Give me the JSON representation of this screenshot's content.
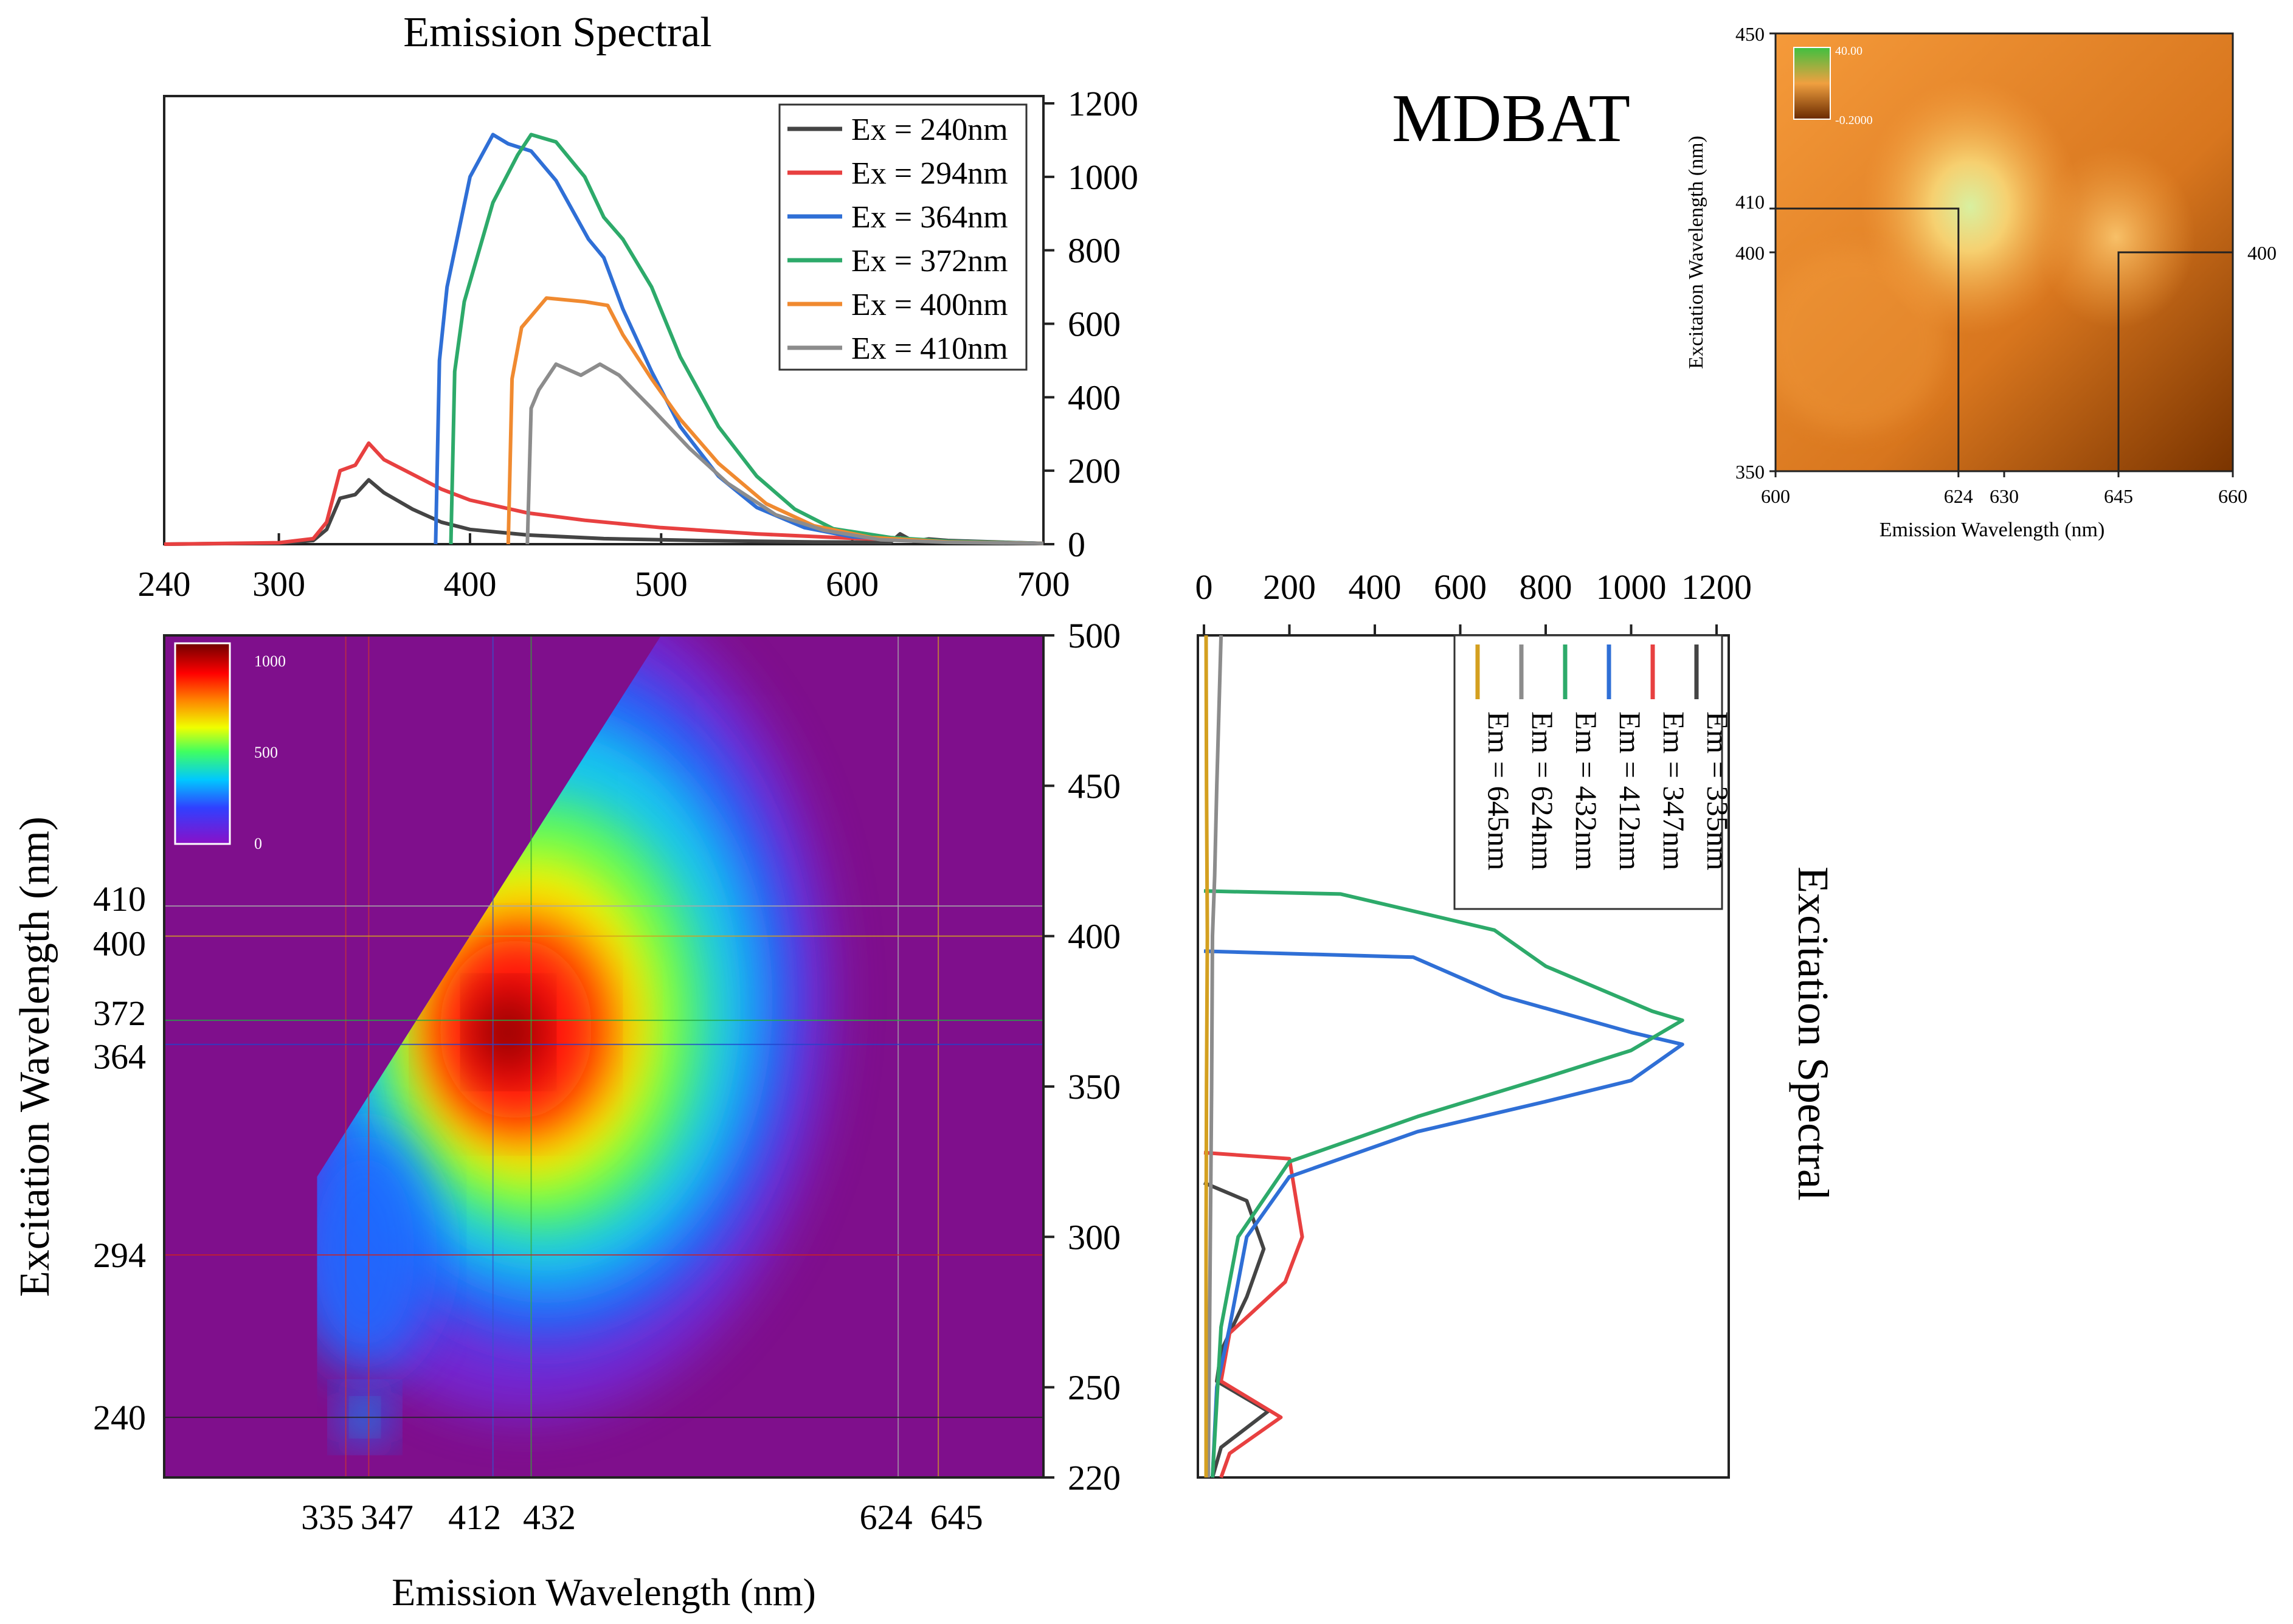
{
  "chart_data": [
    {
      "id": "emission",
      "type": "line",
      "title": "Emission Spectral",
      "xlabel": "",
      "ylabel": "",
      "xlim": [
        240,
        700
      ],
      "ylim": [
        0,
        1200
      ],
      "x_ticks": [
        240,
        300,
        400,
        500,
        600,
        700
      ],
      "y_ticks": [
        0,
        200,
        400,
        600,
        800,
        1000,
        1200
      ],
      "legend_position": "top-right",
      "series": [
        {
          "name": "Ex = 240nm",
          "color": "#444444",
          "points": [
            [
              240,
              0
            ],
            [
              300,
              3
            ],
            [
              318,
              10
            ],
            [
              325,
              40
            ],
            [
              332,
              125
            ],
            [
              340,
              135
            ],
            [
              347,
              175
            ],
            [
              355,
              140
            ],
            [
              370,
              95
            ],
            [
              385,
              60
            ],
            [
              400,
              40
            ],
            [
              430,
              25
            ],
            [
              470,
              15
            ],
            [
              520,
              10
            ],
            [
              580,
              6
            ],
            [
              620,
              5
            ],
            [
              625,
              28
            ],
            [
              632,
              8
            ],
            [
              640,
              14
            ],
            [
              650,
              10
            ],
            [
              700,
              2
            ]
          ]
        },
        {
          "name": "Ex = 294nm",
          "color": "#e84040",
          "points": [
            [
              240,
              0
            ],
            [
              300,
              4
            ],
            [
              318,
              15
            ],
            [
              325,
              60
            ],
            [
              332,
              200
            ],
            [
              340,
              215
            ],
            [
              347,
              275
            ],
            [
              355,
              230
            ],
            [
              370,
              190
            ],
            [
              385,
              150
            ],
            [
              400,
              120
            ],
            [
              430,
              85
            ],
            [
              460,
              65
            ],
            [
              500,
              45
            ],
            [
              550,
              28
            ],
            [
              600,
              16
            ],
            [
              625,
              12
            ],
            [
              645,
              8
            ],
            [
              700,
              2
            ]
          ]
        },
        {
          "name": "Ex = 364nm",
          "color": "#2f6fd6",
          "points": [
            [
              382,
              0
            ],
            [
              384,
              500
            ],
            [
              388,
              700
            ],
            [
              400,
              1000
            ],
            [
              412,
              1115
            ],
            [
              420,
              1090
            ],
            [
              432,
              1070
            ],
            [
              445,
              990
            ],
            [
              462,
              830
            ],
            [
              470,
              780
            ],
            [
              480,
              640
            ],
            [
              495,
              470
            ],
            [
              510,
              320
            ],
            [
              530,
              185
            ],
            [
              550,
              100
            ],
            [
              575,
              45
            ],
            [
              600,
              20
            ],
            [
              650,
              8
            ],
            [
              700,
              2
            ]
          ]
        },
        {
          "name": "Ex = 372nm",
          "color": "#2daa6a",
          "points": [
            [
              390,
              0
            ],
            [
              392,
              470
            ],
            [
              397,
              660
            ],
            [
              412,
              930
            ],
            [
              425,
              1060
            ],
            [
              432,
              1115
            ],
            [
              445,
              1095
            ],
            [
              460,
              1000
            ],
            [
              470,
              890
            ],
            [
              480,
              830
            ],
            [
              495,
              700
            ],
            [
              510,
              510
            ],
            [
              530,
              320
            ],
            [
              550,
              185
            ],
            [
              570,
              95
            ],
            [
              590,
              42
            ],
            [
              620,
              18
            ],
            [
              650,
              8
            ],
            [
              700,
              2
            ]
          ]
        },
        {
          "name": "Ex = 400nm",
          "color": "#f08a30",
          "points": [
            [
              420,
              0
            ],
            [
              422,
              450
            ],
            [
              427,
              590
            ],
            [
              440,
              670
            ],
            [
              460,
              660
            ],
            [
              472,
              650
            ],
            [
              480,
              570
            ],
            [
              495,
              450
            ],
            [
              510,
              340
            ],
            [
              530,
              220
            ],
            [
              555,
              110
            ],
            [
              580,
              50
            ],
            [
              610,
              18
            ],
            [
              650,
              6
            ],
            [
              700,
              2
            ]
          ]
        },
        {
          "name": "Ex = 410nm",
          "color": "#8c8c8c",
          "points": [
            [
              430,
              0
            ],
            [
              432,
              370
            ],
            [
              436,
              420
            ],
            [
              445,
              490
            ],
            [
              458,
              460
            ],
            [
              468,
              490
            ],
            [
              478,
              460
            ],
            [
              495,
              370
            ],
            [
              515,
              260
            ],
            [
              535,
              165
            ],
            [
              560,
              80
            ],
            [
              585,
              38
            ],
            [
              615,
              12
            ],
            [
              650,
              5
            ],
            [
              700,
              2
            ]
          ]
        }
      ]
    },
    {
      "id": "eem",
      "type": "heatmap",
      "xlabel": "Emission Wavelength (nm)",
      "ylabel": "Excitation Wavelength  (nm)",
      "xlim": [
        240,
        700
      ],
      "ylim": [
        220,
        500
      ],
      "right_ticks": [
        220,
        250,
        300,
        350,
        400,
        450,
        500
      ],
      "bottom_ticks": [
        335,
        347,
        412,
        432,
        624,
        645
      ],
      "left_ticks": [
        240,
        294,
        364,
        372,
        400,
        410
      ],
      "colorbar": {
        "min": 0,
        "max": 1000,
        "ticks": [
          0,
          500,
          1000
        ]
      },
      "peak": {
        "em": 425,
        "ex": 368,
        "value": 1100
      }
    },
    {
      "id": "excitation",
      "type": "line",
      "title": "Excitation Spectral",
      "xlim": [
        0,
        1200
      ],
      "ylim": [
        220,
        500
      ],
      "x_ticks": [
        0,
        200,
        400,
        600,
        800,
        1000,
        1200
      ],
      "legend_position": "top-right",
      "series": [
        {
          "name": "Em = 335nm",
          "color": "#444444",
          "points": [
            [
              0,
              318
            ],
            [
              100,
              312
            ],
            [
              140,
              296
            ],
            [
              100,
              280
            ],
            [
              40,
              262
            ],
            [
              30,
              252
            ],
            [
              150,
              242
            ],
            [
              40,
              230
            ],
            [
              20,
              220
            ]
          ]
        },
        {
          "name": "Em = 347nm",
          "color": "#e84040",
          "points": [
            [
              0,
              328
            ],
            [
              200,
              326
            ],
            [
              230,
              300
            ],
            [
              190,
              285
            ],
            [
              60,
              268
            ],
            [
              40,
              252
            ],
            [
              180,
              240
            ],
            [
              60,
              228
            ],
            [
              40,
              220
            ]
          ]
        },
        {
          "name": "Em = 412nm",
          "color": "#2f6fd6",
          "points": [
            [
              0,
              395
            ],
            [
              490,
              393
            ],
            [
              700,
              380
            ],
            [
              1000,
              368
            ],
            [
              1120,
              364
            ],
            [
              1000,
              352
            ],
            [
              800,
              345
            ],
            [
              500,
              335
            ],
            [
              200,
              320
            ],
            [
              100,
              300
            ],
            [
              60,
              270
            ],
            [
              30,
              250
            ],
            [
              20,
              220
            ]
          ]
        },
        {
          "name": "Em = 432nm",
          "color": "#2daa6a",
          "points": [
            [
              0,
              415
            ],
            [
              320,
              414
            ],
            [
              680,
              402
            ],
            [
              800,
              390
            ],
            [
              1050,
              375
            ],
            [
              1120,
              372
            ],
            [
              1000,
              362
            ],
            [
              800,
              353
            ],
            [
              500,
              340
            ],
            [
              200,
              325
            ],
            [
              80,
              300
            ],
            [
              40,
              270
            ],
            [
              20,
              220
            ]
          ]
        },
        {
          "name": "Em = 624nm",
          "color": "#8c8c8c",
          "points": [
            [
              40,
              500
            ],
            [
              30,
              450
            ],
            [
              25,
              420
            ],
            [
              20,
              400
            ],
            [
              18,
              350
            ],
            [
              15,
              300
            ],
            [
              12,
              250
            ],
            [
              10,
              220
            ]
          ]
        },
        {
          "name": "Em = 645nm",
          "color": "#d4a020",
          "points": [
            [
              5,
              500
            ],
            [
              6,
              450
            ],
            [
              8,
              400
            ],
            [
              6,
              350
            ],
            [
              5,
              300
            ],
            [
              5,
              250
            ],
            [
              5,
              220
            ]
          ]
        }
      ]
    },
    {
      "id": "inset",
      "type": "heatmap",
      "title": "MDBAT",
      "xlabel": "Emission Wavelength  (nm)",
      "ylabel": "Excitation Wavelength  (nm)",
      "xlim": [
        600,
        660
      ],
      "ylim": [
        350,
        450
      ],
      "x_ticks": [
        600,
        624,
        630,
        645,
        660
      ],
      "y_ticks": [
        350,
        400,
        410,
        450
      ],
      "colorbar": {
        "max_label": "40.00",
        "min_label": "-0.2000"
      }
    }
  ]
}
